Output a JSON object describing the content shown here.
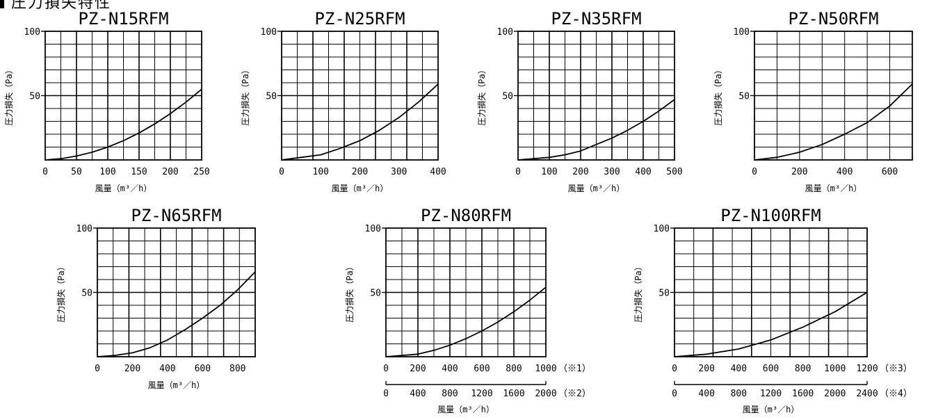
{
  "header": {
    "title": "圧力損失特性"
  },
  "chart_data": [
    {
      "type": "line",
      "title": "PZ-N15RFM",
      "xlabel": "風量（m³／h）",
      "ylabel": "圧力損失（Pa）",
      "xlim": [
        0,
        250
      ],
      "ylim": [
        0,
        100
      ],
      "x_ticks": [
        0,
        50,
        100,
        150,
        200,
        250
      ],
      "y_ticks": [
        50,
        100
      ],
      "grid": true,
      "series": [
        {
          "x": [
            0,
            25,
            50,
            75,
            100,
            125,
            150,
            175,
            200,
            225,
            250
          ],
          "y": [
            0,
            1,
            3,
            6,
            10,
            15,
            21,
            28,
            36,
            45,
            55
          ]
        }
      ]
    },
    {
      "type": "line",
      "title": "PZ-N25RFM",
      "xlabel": "風量（m³／h）",
      "ylabel": "圧力損失（Pa）",
      "xlim": [
        0,
        400
      ],
      "ylim": [
        0,
        100
      ],
      "x_ticks": [
        0,
        100,
        200,
        300,
        400
      ],
      "y_ticks": [
        50,
        100
      ],
      "grid": true,
      "series": [
        {
          "x": [
            0,
            50,
            100,
            150,
            200,
            250,
            300,
            350,
            400
          ],
          "y": [
            0,
            2,
            4,
            9,
            15,
            23,
            33,
            45,
            59
          ]
        }
      ]
    },
    {
      "type": "line",
      "title": "PZ-N35RFM",
      "xlabel": "風量（m³／h）",
      "ylabel": "圧力損失（Pa）",
      "xlim": [
        0,
        500
      ],
      "ylim": [
        0,
        100
      ],
      "x_ticks": [
        0,
        100,
        200,
        300,
        400,
        500
      ],
      "y_ticks": [
        50,
        100
      ],
      "grid": true,
      "series": [
        {
          "x": [
            0,
            50,
            100,
            150,
            200,
            250,
            300,
            350,
            400,
            450,
            500
          ],
          "y": [
            0,
            1,
            2,
            4,
            7,
            12,
            17,
            23,
            30,
            38,
            47
          ]
        }
      ]
    },
    {
      "type": "line",
      "title": "PZ-N50RFM",
      "xlabel": "風量（m³／h）",
      "ylabel": "圧力損失（Pa）",
      "xlim": [
        0,
        700
      ],
      "ylim": [
        0,
        100
      ],
      "x_ticks": [
        0,
        200,
        400,
        600
      ],
      "y_ticks": [
        50,
        100
      ],
      "grid": true,
      "series": [
        {
          "x": [
            0,
            100,
            200,
            300,
            400,
            500,
            600,
            700
          ],
          "y": [
            0,
            2,
            6,
            12,
            20,
            29,
            42,
            59
          ]
        }
      ]
    },
    {
      "type": "line",
      "title": "PZ-N65RFM",
      "xlabel": "風量（m³／h）",
      "ylabel": "圧力損失（Pa）",
      "xlim": [
        0,
        900
      ],
      "ylim": [
        0,
        100
      ],
      "x_ticks": [
        0,
        200,
        400,
        600,
        800
      ],
      "y_ticks": [
        50,
        100
      ],
      "grid": true,
      "series": [
        {
          "x": [
            0,
            100,
            200,
            300,
            400,
            500,
            600,
            700,
            800,
            900
          ],
          "y": [
            0,
            1,
            3,
            7,
            13,
            21,
            30,
            40,
            52,
            66
          ]
        }
      ]
    },
    {
      "type": "line",
      "title": "PZ-N80RFM",
      "xlabel": "風量（m³／h）",
      "ylabel": "圧力損失（Pa）",
      "xlim": [
        0,
        1000
      ],
      "ylim": [
        0,
        100
      ],
      "x_ticks": [
        0,
        200,
        400,
        600,
        800,
        1000
      ],
      "x_note": "（※1）",
      "x2_ticks": [
        0,
        400,
        800,
        1200,
        1600,
        2000
      ],
      "x2_note": "（※2）",
      "y_ticks": [
        50,
        100
      ],
      "grid": true,
      "series": [
        {
          "x": [
            0,
            100,
            200,
            300,
            400,
            500,
            600,
            700,
            800,
            900,
            1000
          ],
          "y": [
            0,
            1,
            2,
            5,
            9,
            14,
            20,
            27,
            35,
            44,
            54
          ]
        }
      ]
    },
    {
      "type": "line",
      "title": "PZ-N100RFM",
      "xlabel": "風量（m³／h）",
      "ylabel": "圧力損失（Pa）",
      "xlim": [
        0,
        1200
      ],
      "ylim": [
        0,
        100
      ],
      "x_ticks": [
        0,
        200,
        400,
        600,
        800,
        1000,
        1200
      ],
      "x_note": "（※3）",
      "x2_ticks": [
        0,
        400,
        800,
        1200,
        1600,
        2000,
        2400
      ],
      "x2_note": "（※4）",
      "y_ticks": [
        50,
        100
      ],
      "grid": true,
      "series": [
        {
          "x": [
            0,
            200,
            400,
            600,
            800,
            1000,
            1200
          ],
          "y": [
            0,
            2,
            6,
            13,
            23,
            35,
            50
          ]
        }
      ]
    }
  ]
}
